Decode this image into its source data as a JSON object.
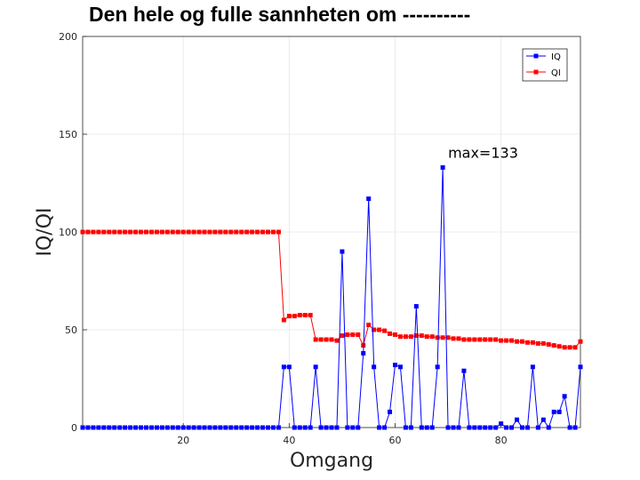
{
  "chart_data": {
    "type": "line",
    "title": "Den hele og fulle sannheten om ----------",
    "xlabel": "Omgang",
    "ylabel": "IQ/QI",
    "xlim": [
      1,
      95
    ],
    "ylim": [
      0,
      200
    ],
    "xticks": [
      20,
      40,
      60,
      80
    ],
    "yticks": [
      0,
      50,
      100,
      150,
      200
    ],
    "grid": true,
    "legend_position": "top-right",
    "annotation": {
      "text": "max=133",
      "x": 70,
      "y": 138
    },
    "x": [
      1,
      2,
      3,
      4,
      5,
      6,
      7,
      8,
      9,
      10,
      11,
      12,
      13,
      14,
      15,
      16,
      17,
      18,
      19,
      20,
      21,
      22,
      23,
      24,
      25,
      26,
      27,
      28,
      29,
      30,
      31,
      32,
      33,
      34,
      35,
      36,
      37,
      38,
      39,
      40,
      41,
      42,
      43,
      44,
      45,
      46,
      47,
      48,
      49,
      50,
      51,
      52,
      53,
      54,
      55,
      56,
      57,
      58,
      59,
      60,
      61,
      62,
      63,
      64,
      65,
      66,
      67,
      68,
      69,
      70,
      71,
      72,
      73,
      74,
      75,
      76,
      77,
      78,
      79,
      80,
      81,
      82,
      83,
      84,
      85,
      86,
      87,
      88,
      89,
      90,
      91,
      92,
      93,
      94,
      95
    ],
    "series": [
      {
        "name": "IQ",
        "color": "#0000ff",
        "values": [
          0,
          0,
          0,
          0,
          0,
          0,
          0,
          0,
          0,
          0,
          0,
          0,
          0,
          0,
          0,
          0,
          0,
          0,
          0,
          0,
          0,
          0,
          0,
          0,
          0,
          0,
          0,
          0,
          0,
          0,
          0,
          0,
          0,
          0,
          0,
          0,
          0,
          0,
          31,
          31,
          0,
          0,
          0,
          0,
          31,
          0,
          0,
          0,
          0,
          90,
          0,
          0,
          0,
          38,
          117,
          31,
          0,
          0,
          8,
          32,
          31,
          0,
          0,
          62,
          0,
          0,
          0,
          31,
          133,
          0,
          0,
          0,
          29,
          0,
          0,
          0,
          0,
          0,
          0,
          2,
          0,
          0,
          4,
          0,
          0,
          31,
          0,
          4,
          0,
          8,
          8,
          16,
          0,
          0,
          31
        ]
      },
      {
        "name": "QI",
        "color": "#ff0000",
        "values": [
          100,
          100,
          100,
          100,
          100,
          100,
          100,
          100,
          100,
          100,
          100,
          100,
          100,
          100,
          100,
          100,
          100,
          100,
          100,
          100,
          100,
          100,
          100,
          100,
          100,
          100,
          100,
          100,
          100,
          100,
          100,
          100,
          100,
          100,
          100,
          100,
          100,
          100,
          55,
          57,
          57,
          57.5,
          57.5,
          57.5,
          45,
          45,
          45,
          45,
          44.5,
          47,
          47.5,
          47.5,
          47.5,
          42,
          52.5,
          50,
          50,
          49.5,
          48,
          47.5,
          46.5,
          46.5,
          46.5,
          47,
          47,
          46.5,
          46.5,
          46,
          46,
          46,
          45.5,
          45.5,
          45,
          45,
          45,
          45,
          45,
          45,
          45,
          44.5,
          44.5,
          44.5,
          44,
          44,
          43.5,
          43.5,
          43,
          43,
          42.5,
          42,
          41.5,
          41,
          41,
          41,
          44
        ]
      }
    ]
  }
}
